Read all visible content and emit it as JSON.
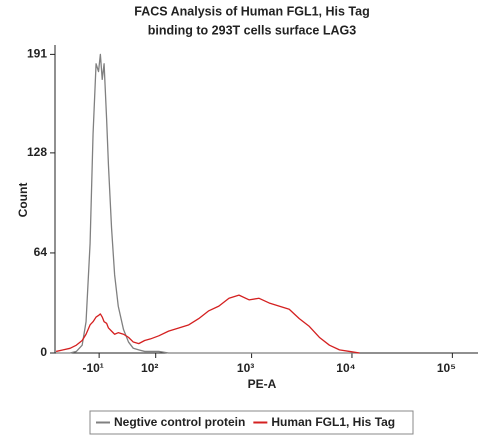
{
  "chart_data": {
    "type": "line",
    "title": [
      "FACS Analysis of Human FGL1, His Tag",
      "binding to 293T cells surface LAG3"
    ],
    "x_label": "PE-A",
    "y_label": "Count",
    "xscale": "biexponential",
    "xlim": [
      -100,
      180000
    ],
    "xticks": [
      {
        "value": -10,
        "label": "-10¹"
      },
      {
        "value": 100,
        "label": "10²"
      },
      {
        "value": 1000,
        "label": "10³"
      },
      {
        "value": 10000,
        "label": "10⁴"
      },
      {
        "value": 100000,
        "label": "10⁵"
      }
    ],
    "ylim": [
      0,
      197
    ],
    "yticks": [
      0,
      64,
      128,
      191
    ],
    "x": [
      -97,
      -79,
      -63,
      -50,
      -39,
      -32,
      -25,
      -20,
      -15,
      -11,
      -8,
      -5,
      -2,
      2,
      5,
      10,
      15,
      21,
      30,
      39,
      48,
      59,
      72,
      86,
      109,
      141,
      182,
      232,
      294,
      372,
      470,
      594,
      748,
      943,
      1187,
      1496,
      1883,
      2372,
      2988,
      3761,
      4737,
      5965,
      7512,
      9456,
      11906
    ],
    "series": [
      {
        "name": "Negtive control protein",
        "color": "#808080",
        "values": [
          0,
          0,
          0,
          1,
          5,
          20,
          70,
          140,
          185,
          180,
          191,
          175,
          185,
          150,
          120,
          80,
          50,
          30,
          15,
          7,
          3,
          2,
          1,
          1,
          1,
          0,
          0,
          0,
          0,
          0,
          0,
          0,
          0,
          0,
          0,
          0,
          0,
          0,
          0,
          0,
          0,
          0,
          0,
          0,
          0
        ]
      },
      {
        "name": "Human FGL1, His Tag",
        "color": "#d42020",
        "values": [
          1,
          2,
          3,
          5,
          8,
          12,
          18,
          20,
          23,
          24,
          25,
          23,
          20,
          19,
          16,
          14,
          12,
          13,
          12,
          10,
          7,
          6,
          8,
          9,
          11,
          14,
          16,
          18,
          22,
          27,
          30,
          35,
          37,
          34,
          35,
          32,
          30,
          28,
          22,
          17,
          10,
          5,
          2,
          1,
          0
        ]
      }
    ]
  }
}
